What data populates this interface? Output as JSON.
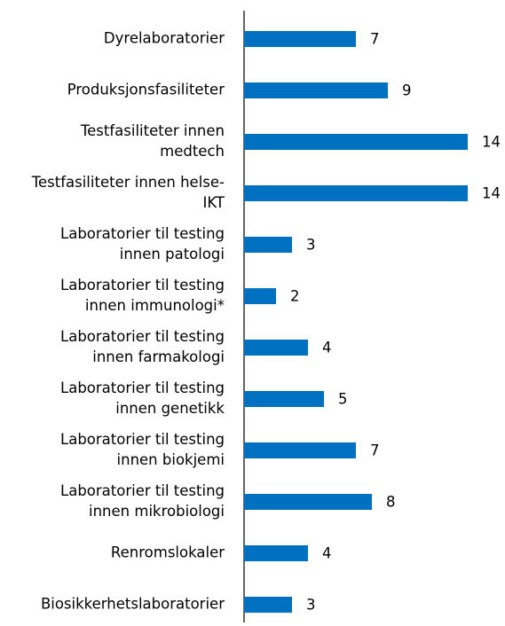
{
  "chart_data": {
    "type": "bar",
    "orientation": "horizontal",
    "categories": [
      [
        "Dyrelaboratorier"
      ],
      [
        "Produksjonsfasiliteter"
      ],
      [
        "Testfasiliteter innen",
        "medtech"
      ],
      [
        "Testfasiliteter innen helse-",
        "IKT"
      ],
      [
        "Laboratorier til testing",
        "innen patologi"
      ],
      [
        "Laboratorier til testing",
        "innen immunologi*"
      ],
      [
        "Laboratorier til testing",
        "innen farmakologi"
      ],
      [
        "Laboratorier til testing",
        "innen genetikk"
      ],
      [
        "Laboratorier til testing",
        "innen biokjemi"
      ],
      [
        "Laboratorier til testing",
        "innen mikrobiologi"
      ],
      [
        "Renromslokaler"
      ],
      [
        "Biosikkerhetslaboratorier"
      ]
    ],
    "values": [
      7,
      9,
      14,
      14,
      3,
      2,
      4,
      5,
      7,
      8,
      4,
      3
    ],
    "color": "#0070c0"
  }
}
